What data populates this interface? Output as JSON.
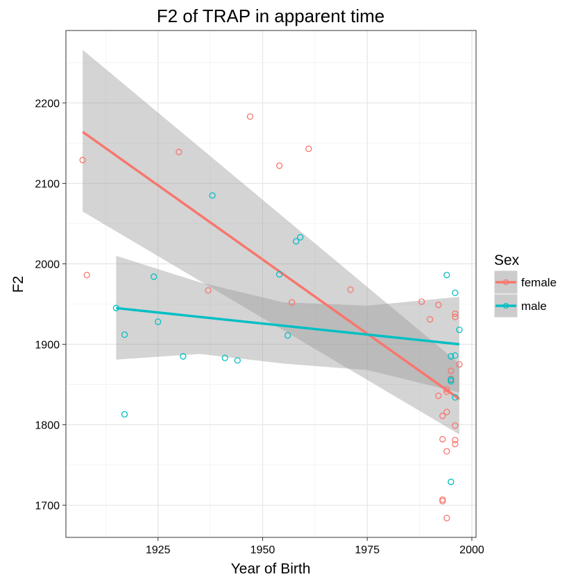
{
  "chart_data": {
    "type": "scatter",
    "title": "F2 of TRAP in apparent time",
    "xlabel": "Year of Birth",
    "ylabel": "F2",
    "xlim": [
      1903,
      2001
    ],
    "ylim": [
      1660,
      2290
    ],
    "x_ticks": [
      1925,
      1950,
      1975,
      2000
    ],
    "y_ticks": [
      1700,
      1800,
      1900,
      2000,
      2100,
      2200
    ],
    "grid": true,
    "legend": {
      "title": "Sex",
      "position": "right"
    },
    "series": [
      {
        "name": "female",
        "color": "#F8766D",
        "points": [
          [
            1907,
            2129
          ],
          [
            1908,
            1986
          ],
          [
            1930,
            2139
          ],
          [
            1937,
            1967
          ],
          [
            1947,
            2183
          ],
          [
            1954,
            2122
          ],
          [
            1957,
            1952
          ],
          [
            1961,
            2143
          ],
          [
            1971,
            1968
          ],
          [
            1988,
            1953
          ],
          [
            1990,
            1931
          ],
          [
            1992,
            1949
          ],
          [
            1992,
            1836
          ],
          [
            1993,
            1811
          ],
          [
            1993,
            1782
          ],
          [
            1993,
            1707
          ],
          [
            1993,
            1705
          ],
          [
            1994,
            1844
          ],
          [
            1994,
            1841
          ],
          [
            1994,
            1816
          ],
          [
            1994,
            1767
          ],
          [
            1994,
            1684
          ],
          [
            1995,
            1867
          ],
          [
            1995,
            1857
          ],
          [
            1996,
            1938
          ],
          [
            1996,
            1934
          ],
          [
            1996,
            1799
          ],
          [
            1996,
            1781
          ],
          [
            1996,
            1776
          ],
          [
            1997,
            1875
          ]
        ],
        "trend": {
          "x": [
            1907,
            1997
          ],
          "y": [
            2164,
            1832
          ]
        },
        "ci": [
          [
            1907,
            2266,
            2065
          ],
          [
            1997,
            1876,
            1788
          ]
        ]
      },
      {
        "name": "male",
        "color": "#00BFC4",
        "points": [
          [
            1915,
            1945
          ],
          [
            1917,
            1912
          ],
          [
            1917,
            1813
          ],
          [
            1924,
            1984
          ],
          [
            1925,
            1928
          ],
          [
            1931,
            1885
          ],
          [
            1938,
            2085
          ],
          [
            1941,
            1883
          ],
          [
            1944,
            1880
          ],
          [
            1954,
            1987
          ],
          [
            1956,
            1911
          ],
          [
            1958,
            2028
          ],
          [
            1959,
            2033
          ],
          [
            1994,
            1986
          ],
          [
            1995,
            1885
          ],
          [
            1995,
            1856
          ],
          [
            1995,
            1854
          ],
          [
            1995,
            1729
          ],
          [
            1996,
            1964
          ],
          [
            1996,
            1886
          ],
          [
            1996,
            1834
          ],
          [
            1997,
            1918
          ]
        ],
        "trend": {
          "x": [
            1915,
            1997
          ],
          "y": [
            1945,
            1900
          ]
        },
        "ci": [
          [
            1915,
            2010,
            1881
          ],
          [
            1935,
            1977,
            1888
          ],
          [
            1955,
            1952,
            1876
          ],
          [
            1975,
            1948,
            1868
          ],
          [
            1997,
            1959,
            1840
          ]
        ]
      }
    ]
  }
}
